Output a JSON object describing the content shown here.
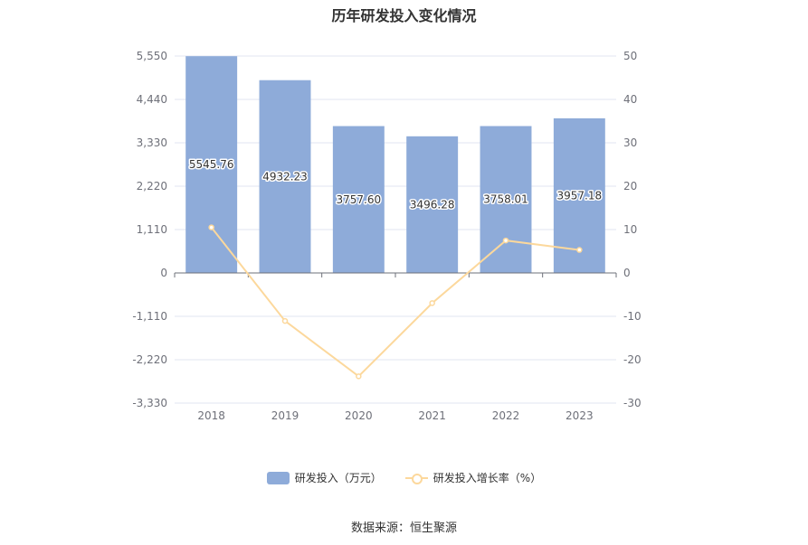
{
  "title": "历年研发投入变化情况",
  "source": "数据来源：恒生聚源",
  "colors": {
    "bar": "#8eabd9",
    "line": "#fcd89c",
    "grid": "#e0e6f1",
    "axis": "#6e7079"
  },
  "chart_data": {
    "type": "bar",
    "title": "历年研发投入变化情况",
    "categories": [
      "2018",
      "2019",
      "2020",
      "2021",
      "2022",
      "2023"
    ],
    "series": [
      {
        "name": "研发投入（万元）",
        "type": "bar",
        "axis": "left",
        "values": [
          5545.76,
          4932.23,
          3757.6,
          3496.28,
          3758.01,
          3957.18
        ],
        "labels": [
          "5545.76",
          "4932.23",
          "3757.60",
          "3496.28",
          "3758.01",
          "3957.18"
        ]
      },
      {
        "name": "研发投入增长率（%）",
        "type": "line",
        "axis": "right",
        "values": [
          10.5,
          -11.06,
          -23.82,
          -6.95,
          7.48,
          5.3
        ]
      }
    ],
    "y_left": {
      "min": -3330,
      "max": 5550,
      "ticks": [
        "-3,330",
        "-2,220",
        "-1,110",
        "0",
        "1,110",
        "2,220",
        "3,330",
        "4,440",
        "5,550"
      ]
    },
    "y_right": {
      "min": -30,
      "max": 50,
      "ticks": [
        "-30",
        "-20",
        "-10",
        "0",
        "10",
        "20",
        "30",
        "40",
        "50"
      ]
    },
    "grid": true,
    "legend_position": "bottom"
  }
}
